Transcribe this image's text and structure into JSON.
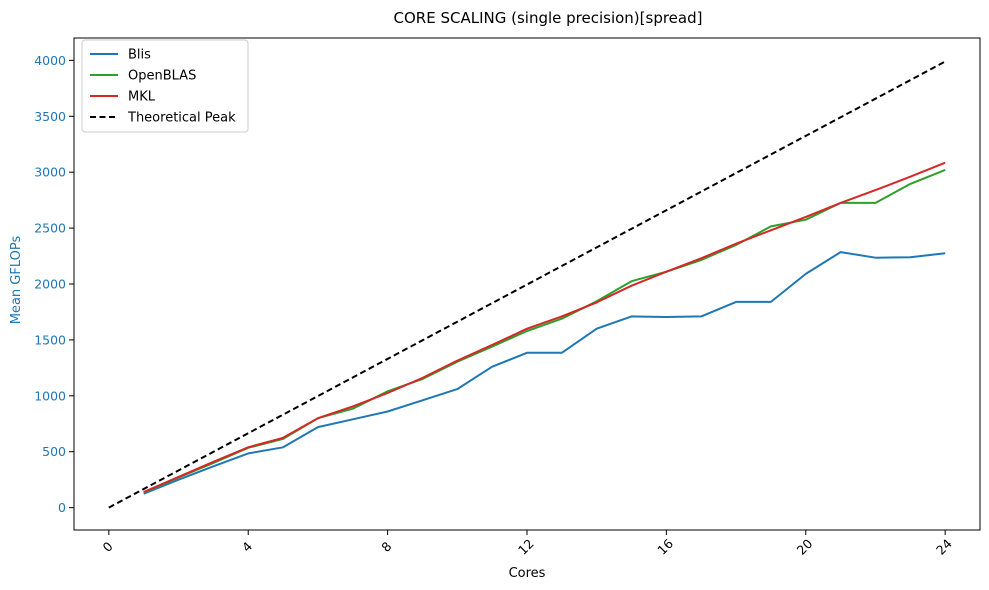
{
  "chart_data": {
    "type": "line",
    "title": "CORE SCALING (single precision)[spread]",
    "xlabel": "Cores",
    "ylabel": "Mean GFLOPs",
    "xlim": [
      -1,
      25
    ],
    "ylim": [
      -200,
      4200
    ],
    "xticks": [
      0,
      4,
      8,
      12,
      16,
      20,
      24
    ],
    "yticks": [
      0,
      500,
      1000,
      1500,
      2000,
      2500,
      3000,
      3500,
      4000
    ],
    "ylabel_color": "#1f77b4",
    "ytick_color": "#1f77b4",
    "legend_position": "upper-left",
    "grid": false,
    "series": [
      {
        "name": "Blis",
        "color": "#1f77b4",
        "style": "solid",
        "x": [
          1,
          2,
          3,
          4,
          5,
          6,
          7,
          8,
          9,
          10,
          11,
          12,
          13,
          14,
          15,
          16,
          17,
          18,
          19,
          20,
          21,
          22,
          23,
          24
        ],
        "y": [
          125,
          250,
          370,
          485,
          540,
          720,
          790,
          860,
          960,
          1060,
          1260,
          1385,
          1385,
          1600,
          1710,
          1705,
          1710,
          1840,
          1840,
          2090,
          2285,
          2235,
          2240,
          2275
        ]
      },
      {
        "name": "OpenBLAS",
        "color": "#2ca02c",
        "style": "solid",
        "x": [
          1,
          2,
          3,
          4,
          5,
          6,
          7,
          8,
          9,
          10,
          11,
          12,
          13,
          14,
          15,
          16,
          17,
          18,
          19,
          20,
          21,
          22,
          23,
          24
        ],
        "y": [
          135,
          270,
          400,
          535,
          615,
          800,
          885,
          1040,
          1150,
          1305,
          1440,
          1580,
          1690,
          1845,
          2025,
          2110,
          2215,
          2350,
          2515,
          2575,
          2725,
          2725,
          2895,
          3020
        ]
      },
      {
        "name": "MKL",
        "color": "#d62728",
        "style": "solid",
        "x": [
          1,
          2,
          3,
          4,
          5,
          6,
          7,
          8,
          9,
          10,
          11,
          12,
          13,
          14,
          15,
          16,
          17,
          18,
          19,
          20,
          21,
          22,
          23,
          24
        ],
        "y": [
          140,
          275,
          410,
          540,
          625,
          800,
          905,
          1025,
          1160,
          1315,
          1455,
          1600,
          1710,
          1835,
          1985,
          2110,
          2230,
          2360,
          2480,
          2600,
          2725,
          2840,
          2960,
          3085
        ]
      },
      {
        "name": "Theoretical Peak",
        "color": "#000000",
        "style": "dashed",
        "x": [
          0,
          24
        ],
        "y": [
          0,
          3990
        ]
      }
    ]
  }
}
